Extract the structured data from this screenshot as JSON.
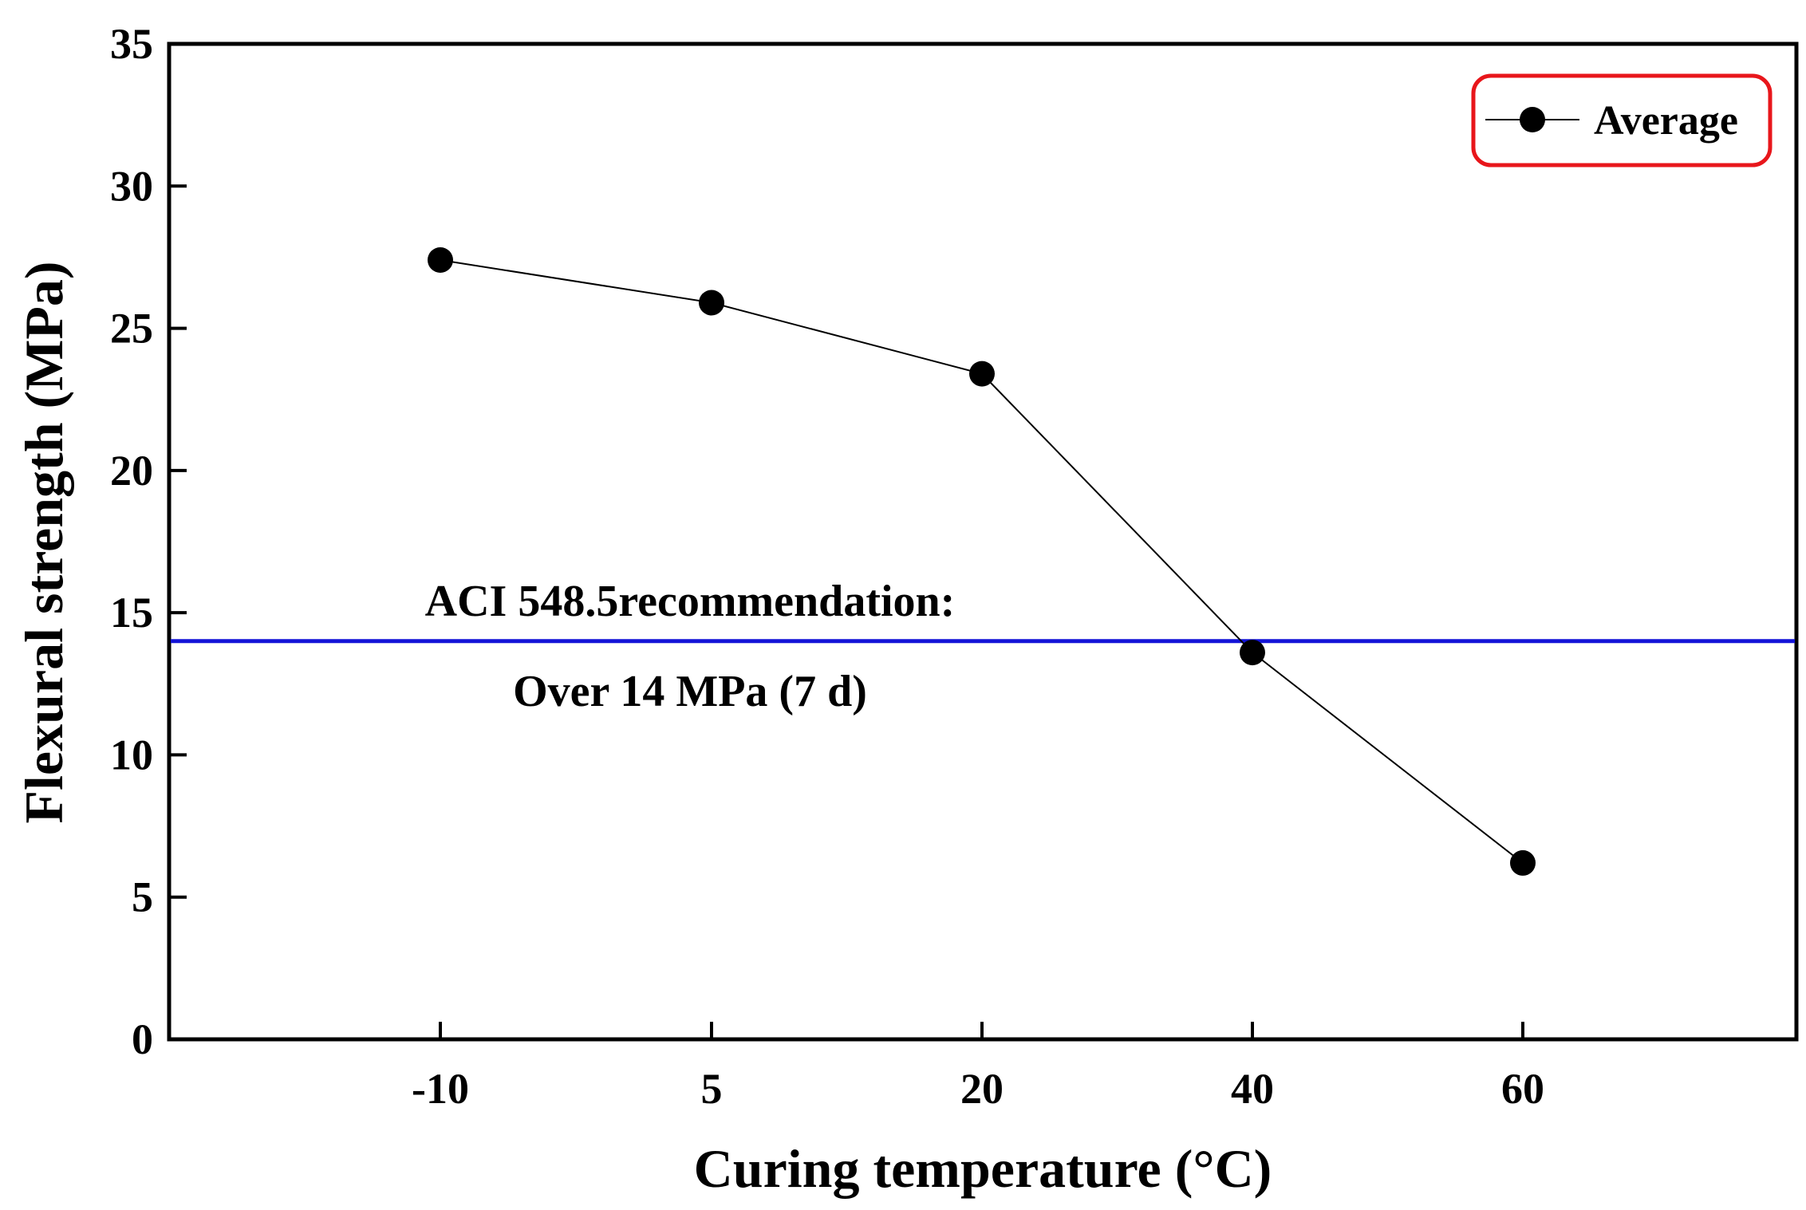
{
  "chart_data": {
    "type": "line",
    "xlabel": "Curing temperature (°C)",
    "ylabel": "Flexural strength (MPa)",
    "categories": [
      "-10",
      "5",
      "20",
      "40",
      "60"
    ],
    "ylim": [
      0,
      35
    ],
    "yticks": [
      "0",
      "5",
      "10",
      "15",
      "20",
      "25",
      "30",
      "35"
    ],
    "series": [
      {
        "name": "Average",
        "values": [
          27.4,
          25.9,
          23.4,
          13.6,
          6.2
        ],
        "color": "#000000"
      }
    ],
    "reference_line": {
      "value": 14,
      "color": "#1414d8"
    },
    "annotations": [
      "ACI 548.5recommendation:",
      "Over 14 MPa (7 d)"
    ],
    "legend": {
      "position": "top-right",
      "border_color": "#e8161b"
    },
    "grid": false
  }
}
